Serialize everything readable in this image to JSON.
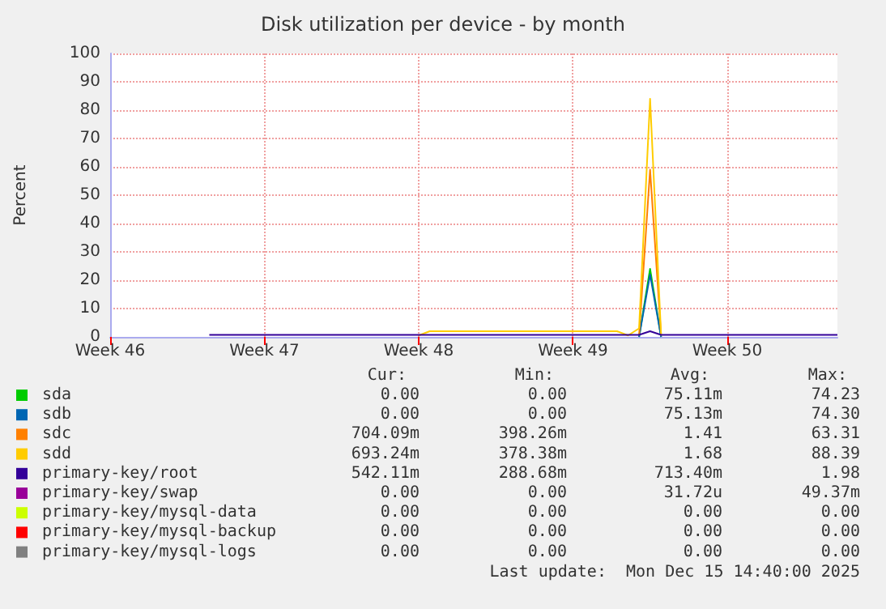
{
  "chart_data": {
    "type": "line",
    "title": "Disk utilization per device - by month",
    "ylabel": "Percent",
    "categories": [
      "Week 46",
      null,
      null,
      null,
      null,
      null,
      null,
      null,
      null,
      null,
      null,
      null,
      null,
      null,
      "Week 47",
      null,
      null,
      null,
      null,
      null,
      null,
      null,
      null,
      null,
      null,
      null,
      null,
      null,
      "Week 48",
      null,
      null,
      null,
      null,
      null,
      null,
      null,
      null,
      null,
      null,
      null,
      null,
      null,
      "Week 49",
      null,
      null,
      null,
      null,
      null,
      null,
      null,
      null,
      null,
      null,
      null,
      null,
      null,
      "Week 50",
      null,
      null,
      null,
      null,
      null,
      null,
      null,
      null,
      null,
      null
    ],
    "ylim": [
      0,
      100
    ],
    "yticks": [
      0,
      10,
      20,
      30,
      40,
      50,
      60,
      70,
      80,
      90,
      100
    ],
    "grid": true,
    "legend": "bottom",
    "marker": "none",
    "line_style": "solid",
    "series": [
      {
        "name": "sda",
        "color": "#00cc00",
        "values": [
          null,
          null,
          null,
          null,
          null,
          null,
          null,
          null,
          null,
          null,
          null,
          null,
          null,
          null,
          null,
          null,
          null,
          null,
          null,
          null,
          null,
          null,
          null,
          null,
          null,
          null,
          null,
          null,
          null,
          null,
          null,
          null,
          null,
          null,
          null,
          null,
          null,
          null,
          null,
          null,
          null,
          null,
          null,
          null,
          null,
          null,
          null,
          null,
          0,
          24,
          0,
          null,
          null,
          null,
          null,
          null,
          null,
          null,
          null,
          null,
          null,
          null,
          null,
          null,
          null,
          null,
          null
        ]
      },
      {
        "name": "sdb",
        "color": "#0066b3",
        "values": [
          null,
          null,
          null,
          null,
          null,
          null,
          null,
          null,
          null,
          null,
          null,
          null,
          null,
          null,
          null,
          null,
          null,
          null,
          null,
          null,
          null,
          null,
          null,
          null,
          null,
          null,
          null,
          null,
          null,
          null,
          null,
          null,
          null,
          null,
          null,
          null,
          null,
          null,
          null,
          null,
          null,
          null,
          null,
          null,
          null,
          null,
          null,
          null,
          0,
          22,
          0,
          null,
          null,
          null,
          null,
          null,
          null,
          null,
          null,
          null,
          null,
          null,
          null,
          null,
          null,
          null,
          null
        ]
      },
      {
        "name": "sdc",
        "color": "#ff8000",
        "values": [
          null,
          null,
          null,
          null,
          null,
          null,
          null,
          null,
          null,
          null,
          null,
          null,
          null,
          null,
          null,
          null,
          null,
          null,
          null,
          null,
          null,
          null,
          null,
          null,
          null,
          null,
          null,
          null,
          null,
          null,
          null,
          null,
          null,
          null,
          null,
          null,
          null,
          null,
          null,
          null,
          null,
          null,
          null,
          null,
          null,
          null,
          null,
          null,
          0.5,
          59,
          0.5,
          null,
          null,
          null,
          null,
          null,
          null,
          null,
          null,
          null,
          null,
          null,
          null,
          null,
          null,
          null,
          null
        ]
      },
      {
        "name": "sdd",
        "color": "#ffcc00",
        "values": [
          null,
          null,
          null,
          null,
          null,
          null,
          null,
          null,
          null,
          null,
          null,
          null,
          null,
          null,
          null,
          null,
          null,
          null,
          null,
          null,
          null,
          null,
          null,
          null,
          null,
          null,
          null,
          null,
          0.5,
          2,
          2,
          2,
          2,
          2,
          2,
          2,
          2,
          2,
          2,
          2,
          2,
          2,
          2,
          2,
          2,
          2,
          2,
          0.5,
          3,
          84,
          0.5,
          null,
          null,
          null,
          null,
          null,
          null,
          null,
          null,
          null,
          null,
          null,
          null,
          null,
          null,
          null,
          null
        ]
      },
      {
        "name": "primary-key/root",
        "color": "#330099",
        "values": [
          null,
          null,
          null,
          null,
          null,
          null,
          null,
          null,
          null,
          0.7,
          0.7,
          0.7,
          0.7,
          0.7,
          0.7,
          0.7,
          0.7,
          0.7,
          0.7,
          0.7,
          0.7,
          0.7,
          0.7,
          0.7,
          0.7,
          0.7,
          0.7,
          0.7,
          0.7,
          0.7,
          0.7,
          0.7,
          0.7,
          0.7,
          0.7,
          0.7,
          0.7,
          0.7,
          0.7,
          0.7,
          0.7,
          0.7,
          0.7,
          0.7,
          0.7,
          0.7,
          0.7,
          0.7,
          0.7,
          2,
          0.7,
          0.7,
          0.7,
          0.7,
          0.7,
          0.7,
          0.7,
          0.7,
          0.7,
          0.7,
          0.7,
          0.7,
          0.7,
          0.7,
          0.7,
          0.7,
          0.7
        ]
      },
      {
        "name": "primary-key/swap",
        "color": "#990099",
        "values": [
          null,
          null,
          null,
          null,
          null,
          null,
          null,
          null,
          null,
          null,
          null,
          null,
          null,
          null,
          null,
          null,
          null,
          null,
          null,
          null,
          null,
          null,
          null,
          null,
          null,
          null,
          null,
          null,
          null,
          null,
          null,
          null,
          null,
          null,
          null,
          null,
          null,
          null,
          null,
          null,
          null,
          null,
          null,
          null,
          null,
          null,
          null,
          null,
          null,
          null,
          null,
          null,
          null,
          null,
          null,
          null,
          null,
          null,
          null,
          null,
          null,
          null,
          null,
          null,
          null,
          null,
          null
        ]
      },
      {
        "name": "primary-key/mysql-data",
        "color": "#ccff00",
        "values": [
          null,
          null,
          null,
          null,
          null,
          null,
          null,
          null,
          null,
          null,
          null,
          null,
          null,
          null,
          null,
          null,
          null,
          null,
          null,
          null,
          null,
          null,
          null,
          null,
          null,
          null,
          null,
          null,
          null,
          null,
          null,
          null,
          null,
          null,
          null,
          null,
          null,
          null,
          null,
          null,
          null,
          null,
          null,
          null,
          null,
          null,
          null,
          null,
          null,
          null,
          null,
          null,
          null,
          null,
          null,
          null,
          null,
          null,
          null,
          null,
          null,
          null,
          null,
          null,
          null,
          null,
          null
        ]
      },
      {
        "name": "primary-key/mysql-backup",
        "color": "#ff0000",
        "values": [
          null,
          null,
          null,
          null,
          null,
          null,
          null,
          null,
          null,
          null,
          null,
          null,
          null,
          null,
          null,
          null,
          null,
          null,
          null,
          null,
          null,
          null,
          null,
          null,
          null,
          null,
          null,
          null,
          null,
          null,
          null,
          null,
          null,
          null,
          null,
          null,
          null,
          null,
          null,
          null,
          null,
          null,
          null,
          null,
          null,
          null,
          null,
          null,
          null,
          null,
          null,
          null,
          null,
          null,
          null,
          null,
          null,
          null,
          null,
          null,
          null,
          null,
          null,
          null,
          null,
          null,
          null
        ]
      },
      {
        "name": "primary-key/mysql-logs",
        "color": "#808080",
        "values": [
          null,
          null,
          null,
          null,
          null,
          null,
          null,
          null,
          null,
          null,
          null,
          null,
          null,
          null,
          null,
          null,
          null,
          null,
          null,
          null,
          null,
          null,
          null,
          null,
          null,
          null,
          null,
          null,
          null,
          null,
          null,
          null,
          null,
          null,
          null,
          null,
          null,
          null,
          null,
          null,
          null,
          null,
          null,
          null,
          null,
          null,
          null,
          null,
          null,
          null,
          null,
          null,
          null,
          null,
          null,
          null,
          null,
          null,
          null,
          null,
          null,
          null,
          null,
          null,
          null,
          null,
          null
        ]
      }
    ],
    "annotations": [
      "Cur:",
      "Min:",
      "Avg:",
      "Max:",
      "0.00",
      "0.00",
      "75.11m",
      "74.23",
      "0.00",
      "0.00",
      "75.13m",
      "74.30",
      "704.09m",
      "398.26m",
      "1.41",
      "63.31",
      "693.24m",
      "378.38m",
      "1.68",
      "88.39",
      "542.11m",
      "288.68m",
      "713.40m",
      "1.98",
      "0.00",
      "0.00",
      "31.72u",
      "49.37m",
      "0.00",
      "0.00",
      "0.00",
      "0.00",
      "0.00",
      "0.00",
      "0.00",
      "0.00",
      "0.00",
      "0.00",
      "0.00",
      "0.00",
      "Last update:  Mon Dec 15 14:40:00 2025"
    ]
  }
}
